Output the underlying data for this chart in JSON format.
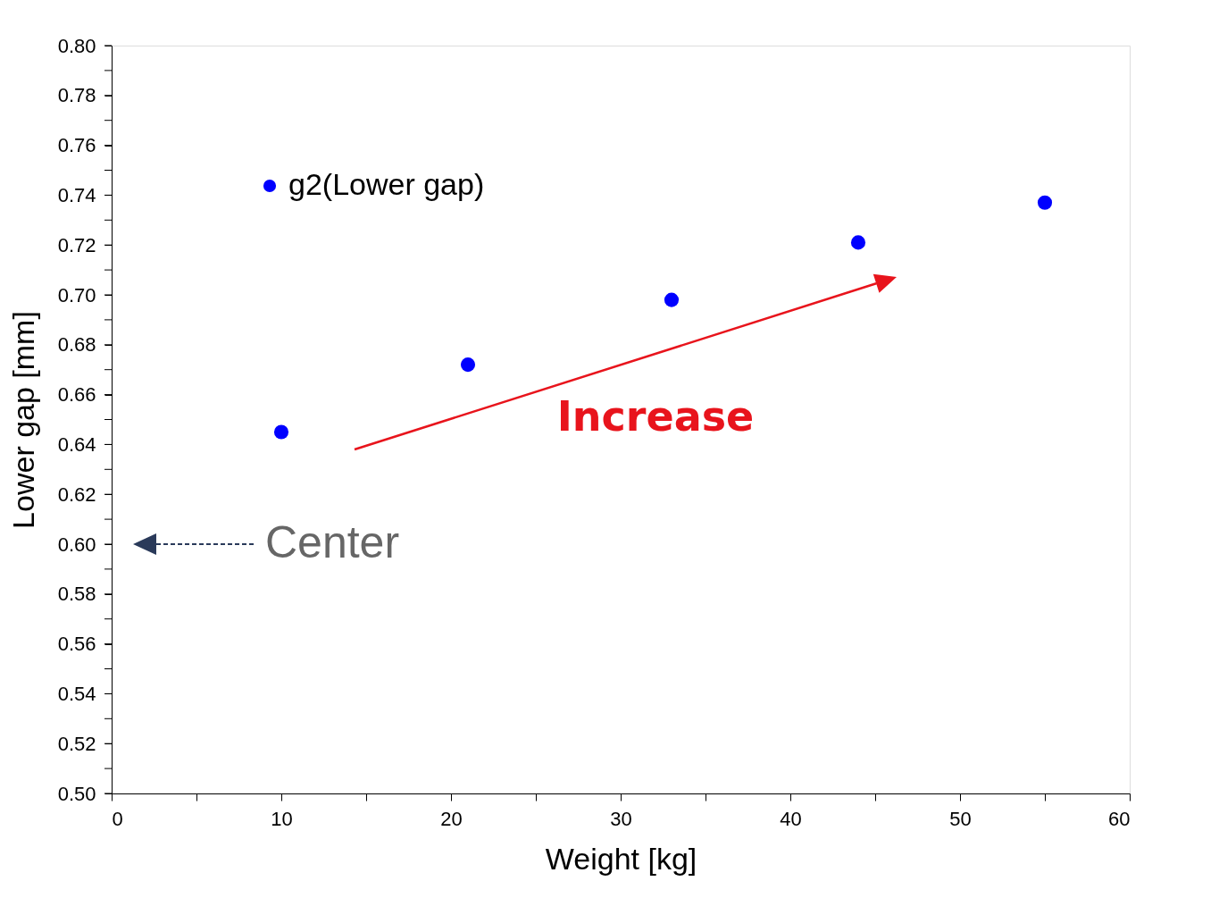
{
  "chart_data": {
    "type": "scatter",
    "xlabel": "Weight [kg]",
    "ylabel": "Lower gap [mm]",
    "x": [
      10,
      21,
      33,
      44,
      55
    ],
    "series": [
      {
        "name": "g2(Lower gap)",
        "color": "#0000ff",
        "values": [
          0.645,
          0.672,
          0.698,
          0.721,
          0.737
        ]
      }
    ],
    "xlim": [
      0,
      60
    ],
    "ylim": [
      0.5,
      0.8
    ],
    "xticks": [
      0,
      {
        "value": 5,
        "label": null
      },
      10,
      {
        "value": 15,
        "label": null
      },
      20,
      {
        "value": 25,
        "label": null
      },
      30,
      {
        "value": 35,
        "label": null
      },
      40,
      {
        "value": 45,
        "label": null
      },
      50,
      {
        "value": 55,
        "label": null
      },
      60
    ],
    "yticks": [
      {
        "value": 0.5,
        "label": "0.50"
      },
      {
        "value": 0.51,
        "label": null
      },
      {
        "value": 0.52,
        "label": "0.52"
      },
      {
        "value": 0.53,
        "label": null
      },
      {
        "value": 0.54,
        "label": "0.54"
      },
      {
        "value": 0.55,
        "label": null
      },
      {
        "value": 0.56,
        "label": "0.56"
      },
      {
        "value": 0.57,
        "label": null
      },
      {
        "value": 0.58,
        "label": "0.58"
      },
      {
        "value": 0.59,
        "label": null
      },
      {
        "value": 0.6,
        "label": "0.60"
      },
      {
        "value": 0.61,
        "label": null
      },
      {
        "value": 0.62,
        "label": "0.62"
      },
      {
        "value": 0.63,
        "label": null
      },
      {
        "value": 0.64,
        "label": "0.64"
      },
      {
        "value": 0.65,
        "label": null
      },
      {
        "value": 0.66,
        "label": "0.66"
      },
      {
        "value": 0.67,
        "label": null
      },
      {
        "value": 0.68,
        "label": "0.68"
      },
      {
        "value": 0.69,
        "label": null
      },
      {
        "value": 0.7,
        "label": "0.70"
      },
      {
        "value": 0.71,
        "label": null
      },
      {
        "value": 0.72,
        "label": "0.72"
      },
      {
        "value": 0.73,
        "label": null
      },
      {
        "value": 0.74,
        "label": "0.74"
      },
      {
        "value": 0.75,
        "label": null
      },
      {
        "value": 0.76,
        "label": "0.76"
      },
      {
        "value": 0.77,
        "label": null
      },
      {
        "value": 0.78,
        "label": "0.78"
      },
      {
        "value": 0.79,
        "label": null
      },
      {
        "value": 0.8,
        "label": "0.80"
      }
    ],
    "marker": "circle",
    "legend": "top left",
    "grid": false,
    "annotations": [
      "Increase",
      "Center"
    ]
  }
}
